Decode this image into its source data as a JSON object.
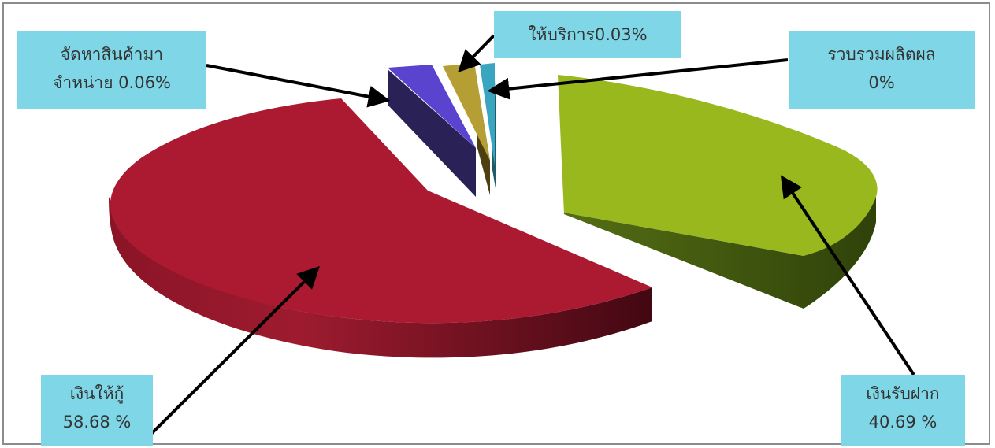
{
  "chart_data": {
    "type": "pie",
    "title": "",
    "style": "3d-exploded",
    "slices": [
      {
        "label": "เงินให้กู้",
        "value": 58.68,
        "color": "#ab1a30"
      },
      {
        "label": "จัดหาสินค้ามาจำหน่าย",
        "value": 0.06,
        "color": "#5642c9"
      },
      {
        "label": "ให้บริการ",
        "value": 0.03,
        "color": "#b59e34"
      },
      {
        "label": "รวบรวมผลิตผล",
        "value": 0,
        "color": "#3aa5be"
      },
      {
        "label": "เงินรับฝาก",
        "value": 40.69,
        "color": "#98b81e"
      }
    ],
    "legend": "none",
    "callout_color": "#7fd6e6"
  },
  "callouts": {
    "loans": {
      "line1": "เงินให้กู้",
      "line2": "58.68 %"
    },
    "goods": {
      "line1": "จัดหาสินค้ามา",
      "line2": "จำหน่าย 0.06%"
    },
    "services": {
      "line1": "ให้บริการ0.03%"
    },
    "collection": {
      "line1": "รวบรวมผลิตผล",
      "line2": "0%"
    },
    "deposits": {
      "line1": "เงินรับฝาก",
      "line2": "40.69 %"
    }
  }
}
